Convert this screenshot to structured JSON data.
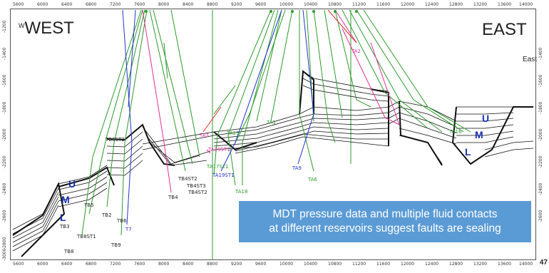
{
  "directions": {
    "west": "WEST",
    "east": "EAST",
    "east_small": "East",
    "west_prefix": "W"
  },
  "x_ticks": [
    "5600",
    "6000",
    "6400",
    "6800",
    "7200",
    "7600",
    "8000",
    "8400",
    "8800",
    "9200",
    "9600",
    "10000",
    "10400",
    "10800",
    "11200",
    "11600",
    "12000",
    "12400",
    "12800",
    "13200",
    "13600",
    "14000"
  ],
  "y_ticks": [
    "-1200",
    "-1400",
    "-1600",
    "-1800",
    "-2000",
    "-2200",
    "-2400",
    "-2600",
    "-2800",
    "-3000"
  ],
  "zone_labels_west": [
    "U",
    "M",
    "L"
  ],
  "zone_labels_east": [
    "U",
    "M",
    "L"
  ],
  "wells_black": [
    "TB8ST2",
    "TB4ST2",
    "TB4ST3",
    "TB4ST2",
    "TB4",
    "TB5",
    "TB2",
    "TB6",
    "TB3",
    "TB8ST1",
    "TB9",
    "TB8"
  ],
  "wells_blue": [
    "T7",
    "TA19ST1",
    "TA9"
  ],
  "wells_green": [
    "TA13",
    "TA1",
    "TA6",
    "TA18",
    "TA16",
    "TA17ST1"
  ],
  "wells_pink": [
    "TA2",
    "TA3",
    "TA19ST1"
  ],
  "callout": {
    "line1": "MDT pressure data and multiple fluid contacts",
    "line2": "at different reservoirs suggest faults are sealing"
  },
  "page_number": "47",
  "colors": {
    "green_well": "#2e9a2e",
    "blue_well": "#2233cc",
    "pink_well": "#e0309a",
    "red_well": "#e03030",
    "callout_bg": "#5b9bd5",
    "horizon": "#111111"
  }
}
